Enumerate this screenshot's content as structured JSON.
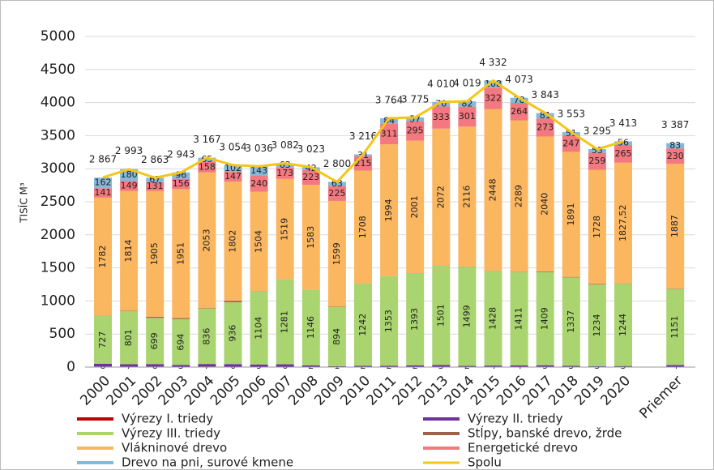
{
  "chart_data": {
    "type": "stacked-bar-line",
    "ylabel": "TISÍC M³",
    "categories": [
      "2000",
      "2001",
      "2002",
      "2003",
      "2004",
      "2005",
      "2006",
      "2007",
      "2008",
      "2009",
      "2010",
      "2011",
      "2012",
      "2013",
      "2014",
      "2015",
      "2016",
      "2017",
      "2018",
      "2019",
      "2020",
      "Priemer"
    ],
    "ylim": [
      0,
      5000
    ],
    "yticks": [
      0,
      500,
      1000,
      1500,
      2000,
      2500,
      3000,
      3500,
      4000,
      4500,
      5000
    ],
    "grid": true,
    "legend": "bottom",
    "series": [
      {
        "name": "Výrezy I. triedy",
        "color": "#c00000",
        "values": [
          8,
          7,
          8,
          3,
          7,
          6,
          5,
          6,
          2,
          1,
          2,
          2,
          2,
          3,
          2,
          4,
          4,
          5,
          3,
          3,
          3,
          4
        ]
      },
      {
        "name": "Výrezy II. triedy",
        "color": "#7030a0",
        "values": [
          42,
          37,
          37,
          29,
          40,
          39,
          34,
          36,
          25,
          13,
          18,
          19,
          25,
          28,
          16,
          19,
          21,
          23,
          16,
          11,
          13,
          26
        ]
      },
      {
        "name": "Výrezy III. triedy",
        "color": "#a9d46f",
        "values": [
          727,
          801,
          699,
          694,
          836,
          936,
          1104,
          1281,
          1146,
          894,
          1242,
          1353,
          1393,
          1501,
          1499,
          1428,
          1411,
          1409,
          1337,
          1234,
          1244,
          1151
        ]
      },
      {
        "name": "Stĺpy, banské drevo, žrde",
        "color": "#a0604a",
        "values": [
          4,
          6,
          16,
          15,
          8,
          22,
          5,
          3,
          0,
          6,
          1,
          1,
          2,
          3,
          3,
          4,
          6,
          10,
          8,
          8,
          5,
          6
        ]
      },
      {
        "name": "Vlákninové drevo",
        "color": "#fbb660",
        "values": [
          1782,
          1814,
          1905,
          1951,
          2053,
          1802,
          1504,
          1519,
          1583,
          1599,
          1708,
          1994,
          2001,
          2072,
          2116,
          2448,
          2289,
          2040,
          1891,
          1728,
          1827.52,
          1887
        ],
        "value_labels": [
          "1782",
          "1814",
          "1905",
          "1951",
          "2053",
          "1802",
          "1504",
          "1519",
          "1583",
          "1599",
          "1708",
          "1994",
          "2001",
          "2072",
          "2116",
          "2448",
          "2289",
          "2040",
          "1891",
          "1728",
          "1827,52",
          "1887"
        ]
      },
      {
        "name": "Energetické drevo",
        "color": "#f4787f",
        "values": [
          141,
          149,
          131,
          156,
          158,
          147,
          240,
          173,
          223,
          225,
          215,
          311,
          295,
          333,
          301,
          322,
          264,
          273,
          247,
          259,
          265,
          230
        ]
      },
      {
        "name": "Drevo na pni, surové kmene",
        "color": "#86b8d8",
        "values": [
          162,
          180,
          67,
          96,
          65,
          102,
          143,
          63,
          42,
          63,
          31,
          84,
          57,
          70,
          82,
          108,
          78,
          81,
          51,
          53,
          56,
          83
        ]
      },
      {
        "name": "Spolu",
        "color": "#f5c518",
        "kind": "line",
        "values": [
          2867,
          2993,
          2863,
          2943,
          3167,
          3054,
          3036,
          3082,
          3023,
          2800,
          3216,
          3764,
          3775,
          4010,
          4019,
          4332,
          4073,
          3843,
          3553,
          3295,
          3413,
          3387
        ],
        "value_labels": [
          "2 867",
          "2 993",
          "2 863",
          "2 943",
          "3 167",
          "3 054",
          "3 036",
          "3 082",
          "3 023",
          "2 800",
          "3 216",
          "3 764",
          "3 775",
          "4 010",
          "4 019",
          "4 332",
          "4 073",
          "3 843",
          "3 553",
          "3 295",
          "3 413",
          "3 387"
        ]
      }
    ]
  }
}
